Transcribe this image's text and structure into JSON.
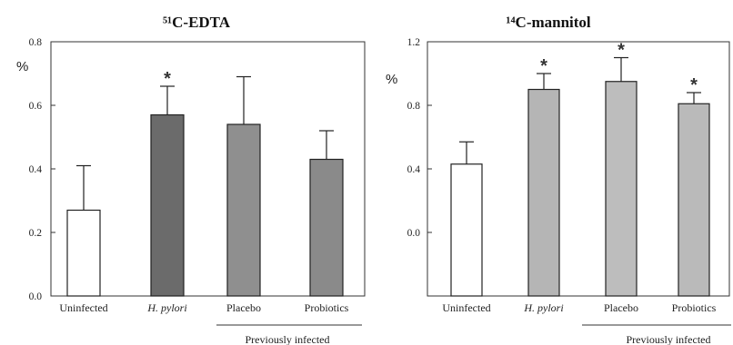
{
  "chart_data": [
    {
      "type": "bar",
      "title": "⁵¹C-EDTA",
      "ylabel": "%",
      "ylim": [
        0,
        0.8
      ],
      "yticks": [
        "0.0",
        "0.2",
        "0.4",
        "0.6",
        "0.8"
      ],
      "categories": [
        "Uninfected",
        "H. pylori",
        "Placebo",
        "Probiotics"
      ],
      "values": [
        0.27,
        0.57,
        0.54,
        0.43
      ],
      "error_upper": [
        0.41,
        0.66,
        0.69,
        0.52
      ],
      "significance": [
        "",
        "*",
        "",
        ""
      ],
      "bar_fills": [
        "#ffffff",
        "#6b6b6b",
        "#8f8f8f",
        "#8a8a8a"
      ],
      "group_label": "Previously infected"
    },
    {
      "type": "bar",
      "title": "¹⁴C-mannitol",
      "ylabel": "%",
      "ylim": [
        -0.4,
        1.2
      ],
      "yticks": [
        "0.0",
        "0.4",
        "0.8",
        "1.2"
      ],
      "categories": [
        "Uninfected",
        "H. pylori",
        "Placebo",
        "Probiotics"
      ],
      "values": [
        0.43,
        0.9,
        0.95,
        0.81
      ],
      "error_upper": [
        0.57,
        1.0,
        1.1,
        0.88
      ],
      "significance": [
        "",
        "*",
        "*",
        "*"
      ],
      "bar_fills": [
        "#ffffff",
        "#b5b5b5",
        "#bdbdbd",
        "#bababa"
      ],
      "group_label": "Previously infected"
    }
  ]
}
